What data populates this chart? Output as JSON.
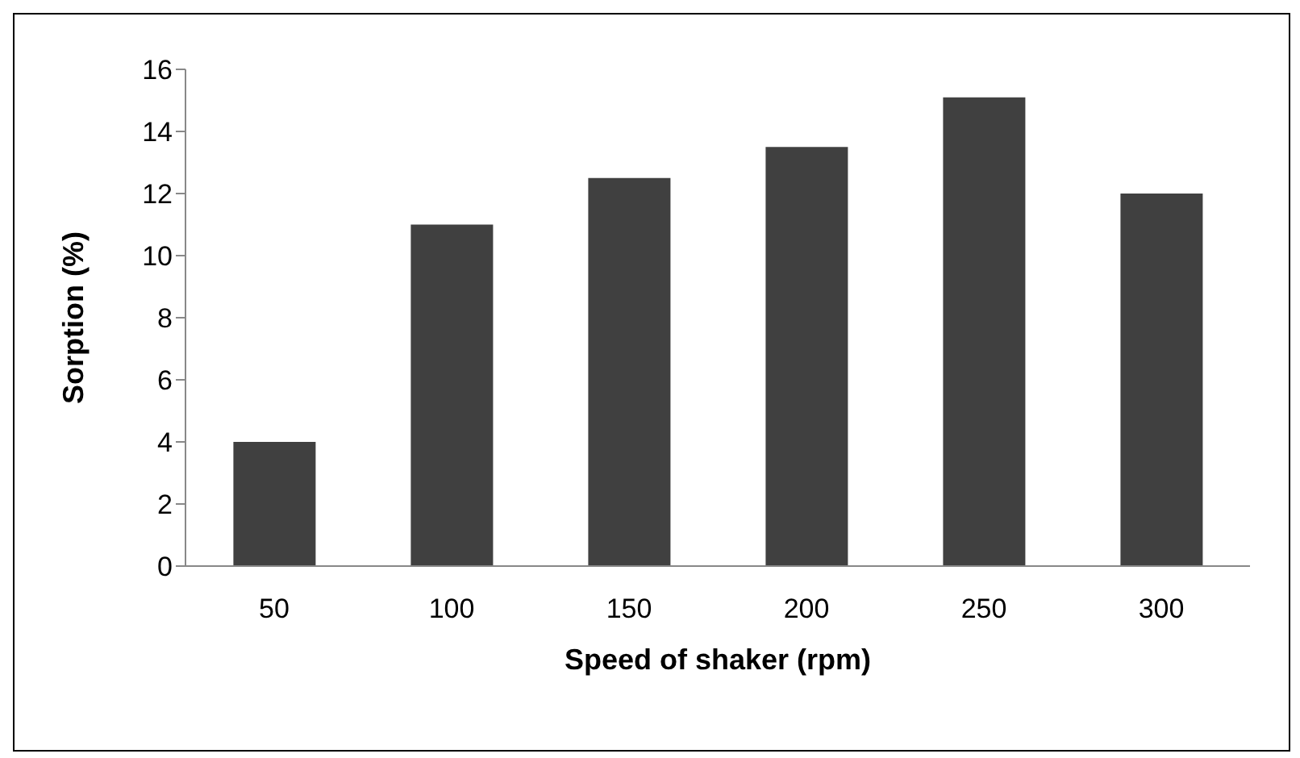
{
  "chart_data": {
    "type": "bar",
    "xlabel": "Speed of shaker (rpm)",
    "ylabel": "Sorption (%)",
    "categories": [
      "50",
      "100",
      "150",
      "200",
      "250",
      "300"
    ],
    "values": [
      4,
      11,
      12.5,
      13.5,
      15.1,
      12
    ],
    "color": "#404040",
    "ylim": [
      0,
      16
    ],
    "yticks": [
      0,
      2,
      4,
      6,
      8,
      10,
      12,
      14,
      16
    ],
    "grid": false
  }
}
